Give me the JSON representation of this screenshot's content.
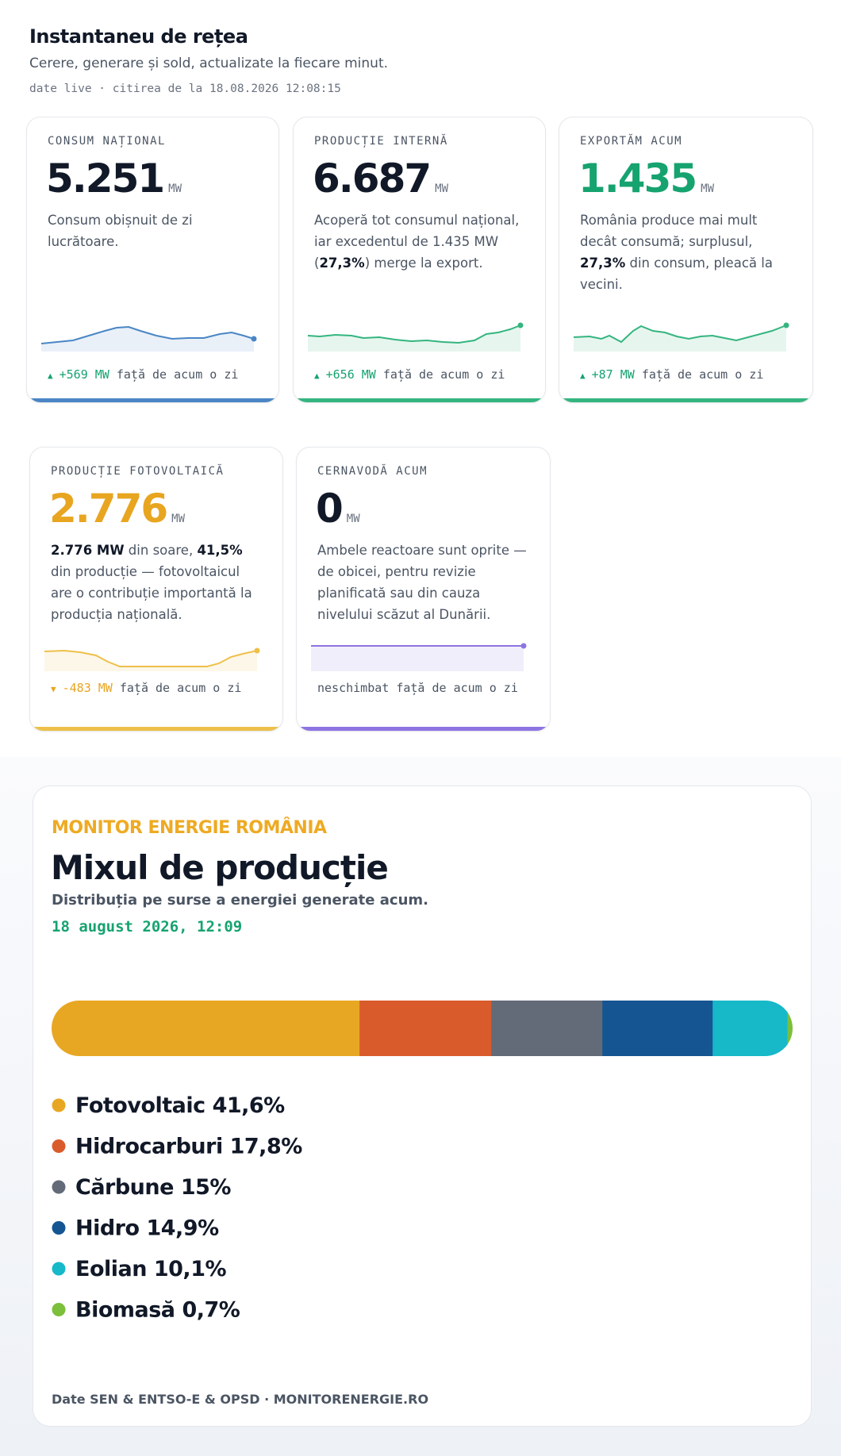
{
  "header": {
    "title": "Instantaneu de rețea",
    "subtitle": "Cerere, generare și sold, actualizate la fiecare minut.",
    "meta": "date live · citirea de la 18.08.2026 12:08:15"
  },
  "cards": [
    {
      "label": "CONSUM NAȚIONAL",
      "value": "5.251",
      "unit": "MW",
      "color": "#111827",
      "accent": "#4a86c5",
      "description": [
        {
          "t": "Consum obișnuit de zi lucrătoare."
        }
      ],
      "delta": "+569 MW",
      "delta_text": "față de acum o zi",
      "delta_color": "#16a36f"
    },
    {
      "label": "PRODUCȚIE INTERNĂ",
      "value": "6.687",
      "unit": "MW",
      "color": "#111827",
      "accent": "#34b57f",
      "description": [
        {
          "t": "Acoperă tot consumul național, iar excedentul de 1.435 MW ("
        },
        {
          "t": "27,3%",
          "b": true
        },
        {
          "t": ") merge la export."
        }
      ],
      "delta": "+656 MW",
      "delta_text": "față de acum o zi",
      "delta_color": "#16a36f"
    },
    {
      "label": "EXPORTĂM ACUM",
      "value": "1.435",
      "unit": "MW",
      "color": "#16a36f",
      "accent": "#34b57f",
      "description": [
        {
          "t": "România produce mai mult decât consumă; surplusul, "
        },
        {
          "t": "27,3%",
          "b": true
        },
        {
          "t": " din consum, pleacă la vecini."
        }
      ],
      "delta": "+87 MW",
      "delta_text": "față de acum o zi",
      "delta_color": "#16a36f"
    },
    {
      "label": "PRODUCȚIE FOTOVOLTAICĂ",
      "value": "2.776",
      "unit": "MW",
      "color": "#e8a520",
      "accent": "#eec04a",
      "description": [
        {
          "t": "2.776 MW",
          "b": true
        },
        {
          "t": " din soare, "
        },
        {
          "t": "41,5%",
          "b": true
        },
        {
          "t": " din producție — fotovoltaicul are o contribuție importantă la producția națională."
        }
      ],
      "delta": "-483 MW",
      "delta_text": "față de acum o zi",
      "delta_color": "#e8a520"
    },
    {
      "label": "CERNAVODĂ ACUM",
      "value": "0",
      "unit": "MW",
      "color": "#111827",
      "accent": "#8e74e2",
      "description": [
        {
          "t": "Ambele reactoare sunt oprite — de obicei, pentru revizie planificată sau din cauza nivelului scăzut al Dunării."
        }
      ],
      "delta_text": "neschimbat față de acum o zi"
    }
  ],
  "mix": {
    "type": "bar",
    "kicker": "MONITOR ENERGIE ROMÂNIA",
    "title": "Mixul de producție",
    "subtitle": "Distribuția pe surse a energiei generate acum.",
    "date": "18 august 2026, 12:09",
    "categories": [
      "Fotovoltaic",
      "Hidrocarburi",
      "Cărbune",
      "Hidro",
      "Eolian",
      "Biomasă"
    ],
    "values": [
      41.6,
      17.8,
      15,
      14.9,
      10.1,
      0.7
    ],
    "value_labels": [
      "41,6%",
      "17,8%",
      "15%",
      "14,9%",
      "10,1%",
      "0,7%"
    ],
    "colors": [
      "#e8a723",
      "#d95b2b",
      "#636b78",
      "#155592",
      "#17b8c8",
      "#7cbf3a"
    ],
    "footer": "Date SEN & ENTSO-E & OPSD · MONITORENERGIE.RO"
  }
}
